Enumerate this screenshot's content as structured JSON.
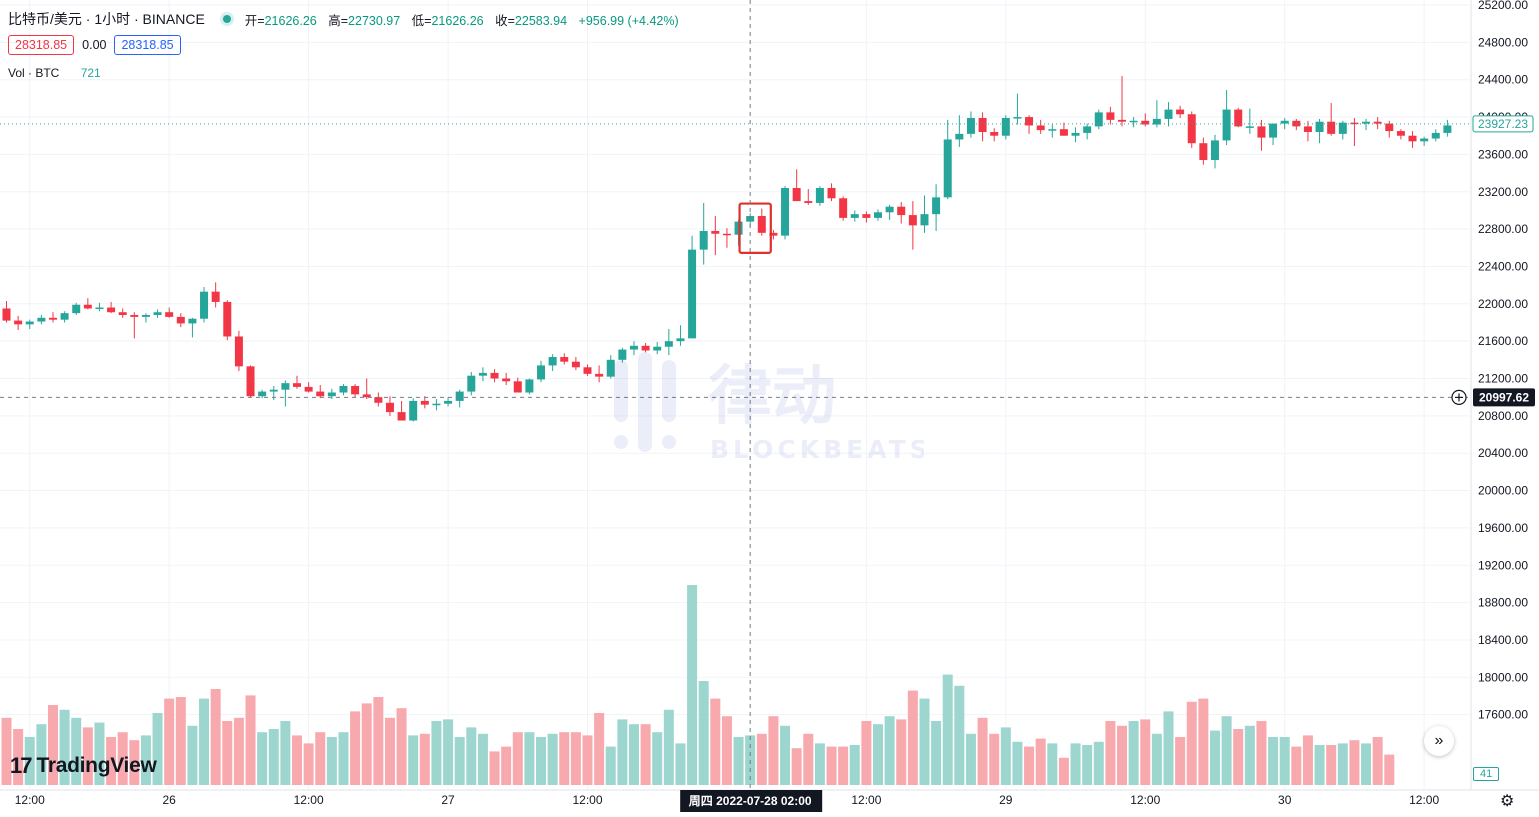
{
  "legend": {
    "symbol": "比特币/美元 · 1小时 · BINANCE",
    "open_label": "开=",
    "open": "21626.26",
    "high_label": "高=",
    "high": "22730.97",
    "low_label": "低=",
    "low": "21626.26",
    "close_label": "收=",
    "close": "22583.94",
    "change": "+956.99 (+4.42%)"
  },
  "order": {
    "sell": "28318.85",
    "spread": "0.00",
    "buy": "28318.85"
  },
  "volume_legend": {
    "label": "Vol · BTC",
    "value": "721"
  },
  "price_tags": {
    "last": "23927.23",
    "crosshair": "20997.62"
  },
  "crosshair_time": "周四 2022-07-28   02:00",
  "volume_tag": "41",
  "branding": {
    "logo_text": "TradingView",
    "watermark_main": "律动",
    "watermark_sub": "BLOCKBEATS"
  },
  "colors": {
    "up": "#26a69a",
    "down": "#f23645",
    "highlight": "#e0302d"
  },
  "chart_data": {
    "type": "candlestick",
    "title": "比特币/美元 · 1小时 · BINANCE",
    "ylim": [
      17200,
      25200
    ],
    "y_ticks": [
      25200,
      24800,
      24400,
      24000,
      23600,
      23200,
      22800,
      22400,
      22000,
      21600,
      21200,
      20800,
      20400,
      20000,
      19600,
      19200,
      18800,
      18400,
      18000,
      17600
    ],
    "y_tick_labels": [
      "25200.00",
      "24800.00",
      "24400.00",
      "24000.00",
      "23600.00",
      "23200.00",
      "22800.00",
      "22400.00",
      "22000.00",
      "21600.00",
      "21200.00",
      "20800.00",
      "20400.00",
      "20000.00",
      "19600.00",
      "19200.00",
      "18800.00",
      "18400.00",
      "18000.00",
      "17600.00"
    ],
    "x_labels": [
      {
        "label": "12:00",
        "index": 2
      },
      {
        "label": "26",
        "index": 14
      },
      {
        "label": "12:00",
        "index": 26
      },
      {
        "label": "27",
        "index": 38
      },
      {
        "label": "12:00",
        "index": 50
      },
      {
        "label": "12:00",
        "index": 74
      },
      {
        "label": "29",
        "index": 86
      },
      {
        "label": "12:00",
        "index": 98
      },
      {
        "label": "30",
        "index": 110
      },
      {
        "label": "12:00",
        "index": 122
      }
    ],
    "crosshair_index": 64,
    "highlight_range": [
      63,
      65
    ],
    "ohlc": [
      [
        21950,
        22030,
        21800,
        21820
      ],
      [
        21820,
        21870,
        21720,
        21780
      ],
      [
        21780,
        21830,
        21730,
        21810
      ],
      [
        21810,
        21880,
        21780,
        21850
      ],
      [
        21850,
        21910,
        21800,
        21830
      ],
      [
        21830,
        21920,
        21800,
        21900
      ],
      [
        21900,
        22010,
        21880,
        21990
      ],
      [
        21990,
        22060,
        21940,
        21950
      ],
      [
        21950,
        22010,
        21920,
        21960
      ],
      [
        21960,
        22020,
        21900,
        21910
      ],
      [
        21910,
        21950,
        21850,
        21880
      ],
      [
        21880,
        21910,
        21630,
        21860
      ],
      [
        21860,
        21900,
        21800,
        21880
      ],
      [
        21880,
        21940,
        21850,
        21910
      ],
      [
        21910,
        21960,
        21850,
        21860
      ],
      [
        21860,
        21900,
        21750,
        21790
      ],
      [
        21790,
        21850,
        21640,
        21840
      ],
      [
        21840,
        22180,
        21800,
        22130
      ],
      [
        22130,
        22230,
        21960,
        22020
      ],
      [
        22020,
        22040,
        21610,
        21650
      ],
      [
        21650,
        21710,
        21280,
        21330
      ],
      [
        21330,
        21340,
        21000,
        21010
      ],
      [
        21010,
        21080,
        20990,
        21060
      ],
      [
        21060,
        21120,
        20970,
        21080
      ],
      [
        21080,
        21180,
        20900,
        21150
      ],
      [
        21150,
        21230,
        21090,
        21110
      ],
      [
        21110,
        21160,
        21050,
        21060
      ],
      [
        21060,
        21130,
        20990,
        21010
      ],
      [
        21010,
        21090,
        20980,
        21050
      ],
      [
        21050,
        21140,
        21020,
        21120
      ],
      [
        21120,
        21140,
        21000,
        21030
      ],
      [
        21030,
        21200,
        20980,
        21000
      ],
      [
        21000,
        21050,
        20900,
        20940
      ],
      [
        20940,
        21010,
        20800,
        20840
      ],
      [
        20840,
        20960,
        20760,
        20750
      ],
      [
        20750,
        20990,
        20740,
        20960
      ],
      [
        20960,
        21010,
        20880,
        20920
      ],
      [
        20920,
        20980,
        20860,
        20930
      ],
      [
        20930,
        21000,
        20900,
        20960
      ],
      [
        20960,
        21080,
        20890,
        21060
      ],
      [
        21060,
        21270,
        21020,
        21230
      ],
      [
        21230,
        21320,
        21170,
        21260
      ],
      [
        21260,
        21300,
        21160,
        21200
      ],
      [
        21200,
        21260,
        21130,
        21170
      ],
      [
        21170,
        21210,
        21050,
        21050
      ],
      [
        21050,
        21200,
        21030,
        21190
      ],
      [
        21190,
        21390,
        21160,
        21340
      ],
      [
        21340,
        21460,
        21280,
        21430
      ],
      [
        21430,
        21470,
        21350,
        21380
      ],
      [
        21380,
        21430,
        21290,
        21320
      ],
      [
        21320,
        21350,
        21230,
        21250
      ],
      [
        21250,
        21340,
        21160,
        21220
      ],
      [
        21220,
        21450,
        21200,
        21400
      ],
      [
        21400,
        21530,
        21370,
        21510
      ],
      [
        21510,
        21600,
        21450,
        21550
      ],
      [
        21550,
        21580,
        21480,
        21500
      ],
      [
        21500,
        21590,
        21460,
        21540
      ],
      [
        21540,
        21730,
        21450,
        21600
      ],
      [
        21600,
        21770,
        21550,
        21630
      ],
      [
        21630,
        22730,
        21630,
        22580
      ],
      [
        22580,
        23080,
        22420,
        22780
      ],
      [
        22780,
        22940,
        22520,
        22750
      ],
      [
        22750,
        22810,
        22600,
        22740
      ],
      [
        22740,
        22900,
        22620,
        22880
      ],
      [
        22880,
        22970,
        22820,
        22940
      ],
      [
        22940,
        23020,
        22730,
        22760
      ],
      [
        22760,
        22790,
        22690,
        22730
      ],
      [
        22730,
        23260,
        22690,
        23240
      ],
      [
        23240,
        23440,
        23120,
        23100
      ],
      [
        23100,
        23230,
        23060,
        23080
      ],
      [
        23080,
        23260,
        23050,
        23240
      ],
      [
        23240,
        23290,
        23100,
        23130
      ],
      [
        23130,
        23150,
        22890,
        22920
      ],
      [
        22920,
        23000,
        22880,
        22960
      ],
      [
        22960,
        22990,
        22870,
        22920
      ],
      [
        22920,
        23010,
        22890,
        22980
      ],
      [
        22980,
        23060,
        22900,
        23040
      ],
      [
        23040,
        23090,
        22860,
        22950
      ],
      [
        22950,
        23100,
        22580,
        22840
      ],
      [
        22840,
        23160,
        22760,
        22960
      ],
      [
        22960,
        23280,
        22780,
        23140
      ],
      [
        23140,
        23970,
        23120,
        23760
      ],
      [
        23760,
        24020,
        23680,
        23820
      ],
      [
        23820,
        24060,
        23780,
        23990
      ],
      [
        23990,
        24050,
        23740,
        23840
      ],
      [
        23840,
        23880,
        23740,
        23800
      ],
      [
        23800,
        24020,
        23760,
        23990
      ],
      [
        23990,
        24250,
        23920,
        24000
      ],
      [
        24000,
        24020,
        23820,
        23910
      ],
      [
        23910,
        23970,
        23820,
        23860
      ],
      [
        23860,
        23920,
        23780,
        23870
      ],
      [
        23870,
        23940,
        23800,
        23800
      ],
      [
        23800,
        23890,
        23730,
        23830
      ],
      [
        23830,
        23930,
        23760,
        23900
      ],
      [
        23900,
        24080,
        23870,
        24050
      ],
      [
        24050,
        24110,
        23920,
        23970
      ],
      [
        23970,
        24440,
        23900,
        23950
      ],
      [
        23950,
        24000,
        23890,
        23960
      ],
      [
        23960,
        24040,
        23900,
        23920
      ],
      [
        23920,
        24180,
        23890,
        23980
      ],
      [
        23980,
        24160,
        23900,
        24080
      ],
      [
        24080,
        24120,
        23990,
        24030
      ],
      [
        24030,
        24060,
        23670,
        23720
      ],
      [
        23720,
        23780,
        23490,
        23540
      ],
      [
        23540,
        23810,
        23450,
        23750
      ],
      [
        23750,
        24290,
        23700,
        24080
      ],
      [
        24080,
        24100,
        23890,
        23900
      ],
      [
        23900,
        24090,
        23820,
        23900
      ],
      [
        23900,
        23970,
        23640,
        23780
      ],
      [
        23780,
        23920,
        23700,
        23930
      ],
      [
        23930,
        23990,
        23870,
        23960
      ],
      [
        23960,
        23980,
        23860,
        23900
      ],
      [
        23900,
        23960,
        23740,
        23840
      ],
      [
        23840,
        23980,
        23720,
        23950
      ],
      [
        23950,
        24150,
        23800,
        23820
      ],
      [
        23820,
        23960,
        23760,
        23940
      ],
      [
        23940,
        23990,
        23690,
        23930
      ],
      [
        23930,
        23980,
        23860,
        23950
      ],
      [
        23950,
        24000,
        23870,
        23930
      ],
      [
        23930,
        23960,
        23780,
        23850
      ],
      [
        23850,
        23870,
        23760,
        23800
      ],
      [
        23800,
        23850,
        23670,
        23740
      ],
      [
        23740,
        23790,
        23690,
        23770
      ],
      [
        23770,
        23870,
        23740,
        23830
      ],
      [
        23830,
        23970,
        23790,
        23910
      ]
    ],
    "volume": [
      420,
      350,
      300,
      380,
      500,
      470,
      420,
      360,
      390,
      300,
      330,
      280,
      310,
      450,
      540,
      550,
      370,
      540,
      600,
      400,
      420,
      560,
      330,
      350,
      400,
      310,
      260,
      330,
      300,
      330,
      460,
      510,
      550,
      420,
      480,
      310,
      320,
      400,
      410,
      300,
      360,
      320,
      210,
      240,
      330,
      330,
      300,
      320,
      330,
      330,
      310,
      450,
      240,
      410,
      380,
      380,
      330,
      470,
      260,
      1250,
      650,
      540,
      430,
      300,
      310,
      320,
      430,
      370,
      230,
      320,
      260,
      240,
      240,
      250,
      400,
      380,
      430,
      410,
      590,
      540,
      400,
      690,
      620,
      320,
      420,
      320,
      360,
      270,
      240,
      290,
      260,
      170,
      260,
      250,
      270,
      400,
      370,
      400,
      410,
      320,
      460,
      300,
      520,
      540,
      340,
      430,
      350,
      370,
      400,
      300,
      300,
      240,
      310,
      250,
      250,
      260,
      280,
      260,
      300,
      190
    ],
    "volume_tick_top": 1250
  }
}
